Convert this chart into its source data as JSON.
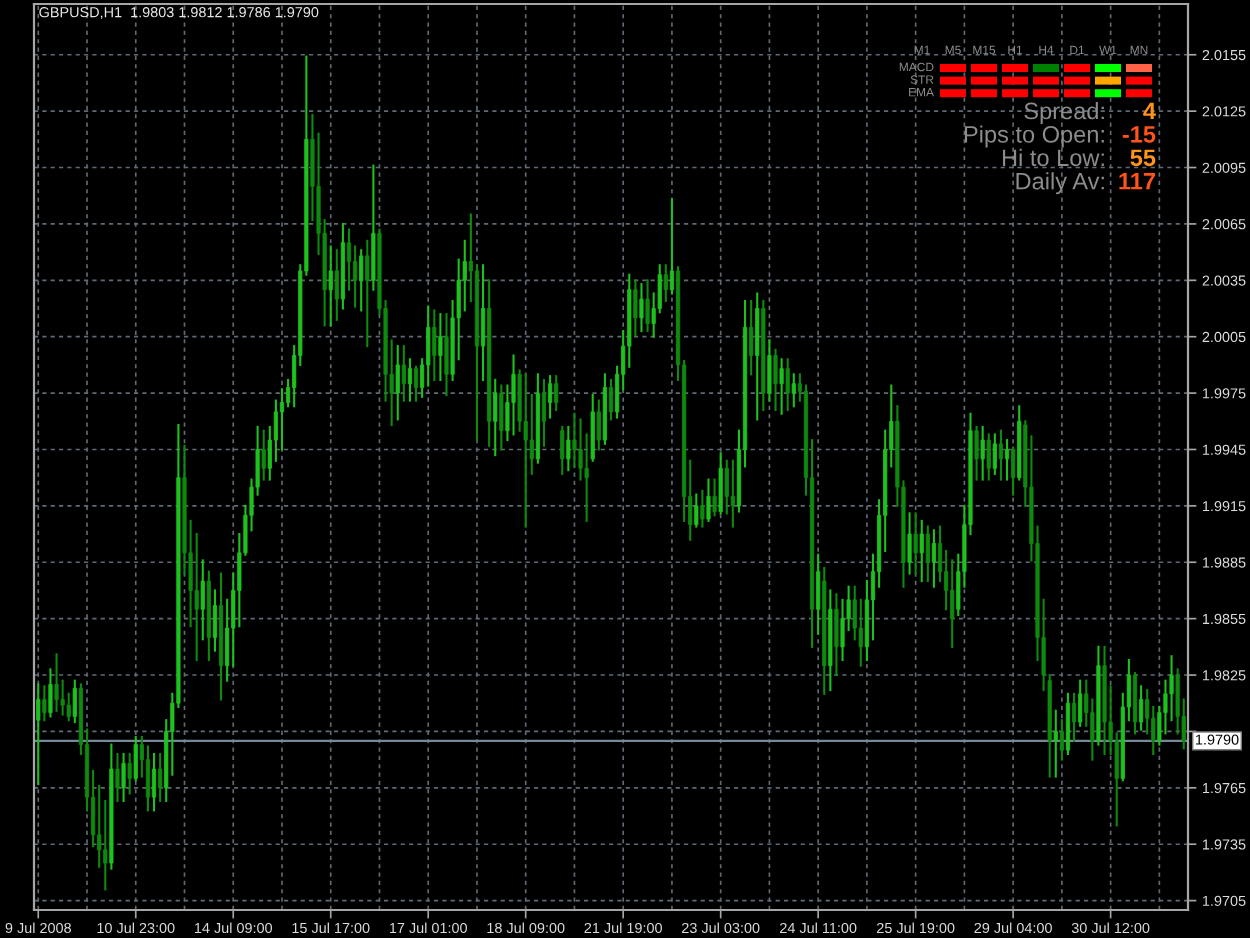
{
  "chart_data": [
    {
      "type": "candlestick",
      "title": "GBPUSD,H1  1.9803 1.9812 1.9786 1.9790",
      "categories": [
        "9 Jul 2008",
        null,
        null,
        null,
        null,
        null,
        null,
        null,
        null,
        null,
        null,
        null,
        null,
        null,
        null,
        null,
        "10 Jul 23:00",
        null,
        null,
        null,
        null,
        null,
        null,
        null,
        null,
        null,
        null,
        null,
        null,
        null,
        null,
        null,
        "14 Jul 09:00",
        null,
        null,
        null,
        null,
        null,
        null,
        null,
        null,
        null,
        null,
        null,
        null,
        null,
        null,
        null,
        "15 Jul 17:00",
        null,
        null,
        null,
        null,
        null,
        null,
        null,
        null,
        null,
        null,
        null,
        null,
        null,
        null,
        null,
        "17 Jul 01:00",
        null,
        null,
        null,
        null,
        null,
        null,
        null,
        null,
        null,
        null,
        null,
        null,
        null,
        null,
        null,
        "18 Jul 09:00",
        null,
        null,
        null,
        null,
        null,
        null,
        null,
        null,
        null,
        null,
        null,
        null,
        null,
        null,
        null,
        "21 Jul 19:00",
        null,
        null,
        null,
        null,
        null,
        null,
        null,
        null,
        null,
        null,
        null,
        null,
        null,
        null,
        null,
        "23 Jul 03:00",
        null,
        null,
        null,
        null,
        null,
        null,
        null,
        null,
        null,
        null,
        null,
        null,
        null,
        null,
        null,
        "24 Jul 11:00",
        null,
        null,
        null,
        null,
        null,
        null,
        null,
        null,
        null,
        null,
        null,
        null,
        null,
        null,
        null,
        "25 Jul 19:00",
        null,
        null,
        null,
        null,
        null,
        null,
        null,
        null,
        null,
        null,
        null,
        null,
        null,
        null,
        null,
        "29 Jul 04:00",
        null,
        null,
        null,
        null,
        null,
        null,
        null,
        null,
        null,
        null,
        null,
        null,
        null,
        null,
        null,
        "30 Jul 12:00",
        null,
        null,
        null,
        null,
        null,
        null,
        null,
        null,
        null,
        null,
        null,
        null
      ],
      "ohlc": [
        [
          1.9801,
          1.982,
          1.9767,
          1.9812
        ],
        [
          1.9812,
          1.9819,
          1.9801,
          1.9805
        ],
        [
          1.9805,
          1.9828,
          1.9803,
          1.982
        ],
        [
          1.982,
          1.9836,
          1.9806,
          1.9812
        ],
        [
          1.9812,
          1.9822,
          1.9804,
          1.9809
        ],
        [
          1.9809,
          1.9815,
          1.9801,
          1.9803
        ],
        [
          1.9803,
          1.9822,
          1.98,
          1.9818
        ],
        [
          1.9818,
          1.982,
          1.9783,
          1.9788
        ],
        [
          1.9788,
          1.9796,
          1.9753,
          1.976
        ],
        [
          1.976,
          1.9774,
          1.9734,
          1.974
        ],
        [
          1.974,
          1.9766,
          1.9723,
          1.9732
        ],
        [
          1.9732,
          1.9758,
          1.9711,
          1.9725
        ],
        [
          1.9725,
          1.9788,
          1.9722,
          1.9775
        ],
        [
          1.9775,
          1.9783,
          1.9758,
          1.9765
        ],
        [
          1.9765,
          1.9783,
          1.9758,
          1.9778
        ],
        [
          1.9778,
          1.9783,
          1.9762,
          1.977
        ],
        [
          1.977,
          1.9792,
          1.9769,
          1.9788
        ],
        [
          1.9788,
          1.9792,
          1.9771,
          1.978
        ],
        [
          1.978,
          1.9787,
          1.9753,
          1.976
        ],
        [
          1.976,
          1.9783,
          1.9753,
          1.9775
        ],
        [
          1.9775,
          1.9783,
          1.9758,
          1.9765
        ],
        [
          1.9765,
          1.9801,
          1.9758,
          1.9795
        ],
        [
          1.9795,
          1.9815,
          1.9772,
          1.981
        ],
        [
          1.981,
          1.9958,
          1.9808,
          1.993
        ],
        [
          1.993,
          1.9947,
          1.9879,
          1.989
        ],
        [
          1.989,
          1.9907,
          1.9851,
          1.987
        ],
        [
          1.987,
          1.99,
          1.9833,
          1.986
        ],
        [
          1.986,
          1.9886,
          1.9844,
          1.9875
        ],
        [
          1.9875,
          1.988,
          1.9833,
          1.9845
        ],
        [
          1.9845,
          1.987,
          1.9838,
          1.9862
        ],
        [
          1.9862,
          1.9879,
          1.9812,
          1.983
        ],
        [
          1.983,
          1.9865,
          1.9822,
          1.985
        ],
        [
          1.985,
          1.9879,
          1.983,
          1.987
        ],
        [
          1.987,
          1.99,
          1.9851,
          1.989
        ],
        [
          1.989,
          1.9915,
          1.9889,
          1.991
        ],
        [
          1.991,
          1.9929,
          1.9902,
          1.9925
        ],
        [
          1.9925,
          1.9957,
          1.9921,
          1.9945
        ],
        [
          1.9945,
          1.9955,
          1.9929,
          1.9935
        ],
        [
          1.9935,
          1.9957,
          1.9929,
          1.995
        ],
        [
          1.995,
          1.9971,
          1.9939,
          1.9965
        ],
        [
          1.9965,
          1.9977,
          1.9945,
          1.997
        ],
        [
          1.997,
          1.9982,
          1.9968,
          1.9978
        ],
        [
          1.9978,
          2.0,
          1.9968,
          1.9995
        ],
        [
          1.9995,
          2.0043,
          1.999,
          2.004
        ],
        [
          2.004,
          2.0154,
          2.0038,
          2.011
        ],
        [
          2.011,
          2.0123,
          2.0067,
          2.0085
        ],
        [
          2.0085,
          2.0113,
          2.0049,
          2.006
        ],
        [
          2.006,
          2.0067,
          2.0011,
          2.003
        ],
        [
          2.003,
          2.0053,
          2.0011,
          2.004
        ],
        [
          2.004,
          2.0051,
          2.0014,
          2.0025
        ],
        [
          2.0025,
          2.0065,
          2.002,
          2.0055
        ],
        [
          2.0055,
          2.0062,
          2.003,
          2.0045
        ],
        [
          2.0045,
          2.0053,
          2.0021,
          2.0035
        ],
        [
          2.0035,
          2.0051,
          2.0019,
          2.0048
        ],
        [
          2.0048,
          2.0056,
          2.0,
          2.0035
        ],
        [
          2.0035,
          2.0096,
          2.003,
          2.006
        ],
        [
          2.006,
          2.0062,
          2.0017,
          2.002
        ],
        [
          2.002,
          2.0024,
          1.9971,
          1.9985
        ],
        [
          1.9985,
          2.0003,
          1.9958,
          1.9975
        ],
        [
          1.9975,
          2.0,
          1.9961,
          1.999
        ],
        [
          1.999,
          2.0,
          1.9971,
          1.998
        ],
        [
          1.998,
          1.9993,
          1.9971,
          1.9988
        ],
        [
          1.9988,
          1.9989,
          1.9971,
          1.9978
        ],
        [
          1.9978,
          1.9993,
          1.9973,
          1.999
        ],
        [
          1.999,
          2.0021,
          1.9979,
          2.001
        ],
        [
          2.001,
          2.0019,
          1.9982,
          1.9995
        ],
        [
          1.9995,
          2.0017,
          1.9982,
          2.0005
        ],
        [
          2.0005,
          2.0017,
          1.9974,
          1.9985
        ],
        [
          1.9985,
          2.0024,
          1.9982,
          2.0015
        ],
        [
          2.0015,
          2.0046,
          1.9993,
          2.0035
        ],
        [
          2.0035,
          2.0056,
          2.0019,
          2.0045
        ],
        [
          2.0045,
          2.007,
          2.0024,
          2.004
        ],
        [
          2.004,
          2.0043,
          1.995,
          2.0
        ],
        [
          2.0,
          2.0043,
          1.9982,
          2.002
        ],
        [
          2.002,
          2.0035,
          1.9947,
          1.996
        ],
        [
          1.996,
          1.9982,
          1.9942,
          1.9975
        ],
        [
          1.9975,
          1.9979,
          1.9945,
          1.9955
        ],
        [
          1.9955,
          1.9979,
          1.995,
          1.997
        ],
        [
          1.997,
          1.9995,
          1.9953,
          1.9985
        ],
        [
          1.9985,
          1.9987,
          1.9955,
          1.996
        ],
        [
          1.996,
          1.9985,
          1.9904,
          1.995
        ],
        [
          1.995,
          1.9974,
          1.9932,
          1.994
        ],
        [
          1.994,
          1.9985,
          1.9938,
          1.9975
        ],
        [
          1.9975,
          1.9982,
          1.9947,
          1.996
        ],
        [
          1.997,
          1.9984,
          1.9962,
          1.998
        ],
        [
          1.998,
          1.9984,
          1.9966,
          1.997
        ],
        [
          1.9955,
          1.9957,
          1.9932,
          1.994
        ],
        [
          1.994,
          1.9957,
          1.9934,
          1.995
        ],
        [
          1.995,
          1.9964,
          1.9936,
          1.9945
        ],
        [
          1.9945,
          1.9961,
          1.9929,
          1.9935
        ],
        [
          1.9935,
          1.9953,
          1.9907,
          1.993
        ],
        [
          1.994,
          1.9974,
          1.9939,
          1.9965
        ],
        [
          1.9965,
          1.9971,
          1.9945,
          1.995
        ],
        [
          1.995,
          1.9985,
          1.9948,
          1.9978
        ],
        [
          1.9978,
          1.9982,
          1.9961,
          1.9965
        ],
        [
          1.9965,
          1.9989,
          1.9962,
          1.9985
        ],
        [
          1.9985,
          2.0008,
          1.9977,
          2.0
        ],
        [
          2.0,
          2.0038,
          1.9989,
          2.003
        ],
        [
          2.003,
          2.0035,
          2.0006,
          2.0015
        ],
        [
          2.0015,
          2.0033,
          2.0008,
          2.0025
        ],
        [
          2.0025,
          2.0035,
          2.0008,
          2.0012
        ],
        [
          2.0012,
          2.0028,
          2.0005,
          2.002
        ],
        [
          2.002,
          2.0043,
          2.0018,
          2.0038
        ],
        [
          2.0038,
          2.0043,
          2.0024,
          2.003
        ],
        [
          2.003,
          2.0078,
          2.0028,
          2.004
        ],
        [
          2.004,
          2.0042,
          1.9982,
          1.999
        ],
        [
          1.999,
          1.9992,
          1.9907,
          1.992
        ],
        [
          1.992,
          1.9939,
          1.9897,
          1.9905
        ],
        [
          1.9905,
          1.9921,
          1.9904,
          1.9915
        ],
        [
          1.9915,
          1.9923,
          1.9904,
          1.9908
        ],
        [
          1.9908,
          1.9929,
          1.9907,
          1.992
        ],
        [
          1.992,
          1.9929,
          1.991,
          1.9912
        ],
        [
          1.9912,
          1.9943,
          1.9911,
          1.9935
        ],
        [
          1.9935,
          1.9939,
          1.9911,
          1.992
        ],
        [
          1.992,
          1.9939,
          1.9904,
          1.9915
        ],
        [
          1.9915,
          1.9955,
          1.9912,
          1.9945
        ],
        [
          1.9945,
          2.0024,
          1.9936,
          2.001
        ],
        [
          2.001,
          2.0024,
          1.9985,
          1.9995
        ],
        [
          1.9995,
          2.0028,
          1.9961,
          2.002
        ],
        [
          2.002,
          2.0024,
          1.9966,
          1.9975
        ],
        [
          1.9975,
          2.0003,
          1.9971,
          1.9995
        ],
        [
          1.9995,
          1.9998,
          1.9966,
          1.998
        ],
        [
          1.998,
          1.9993,
          1.9964,
          1.9988
        ],
        [
          1.9988,
          1.9993,
          1.9966,
          1.9975
        ],
        [
          1.9975,
          1.9985,
          1.9968,
          1.998
        ],
        [
          1.998,
          1.9985,
          1.9971,
          1.9976
        ],
        [
          1.9976,
          1.9979,
          1.9921,
          1.993
        ],
        [
          1.993,
          1.995,
          1.984,
          1.986
        ],
        [
          1.986,
          1.9889,
          1.9847,
          1.988
        ],
        [
          1.9875,
          1.9882,
          1.9815,
          1.983
        ],
        [
          1.983,
          1.987,
          1.9817,
          1.986
        ],
        [
          1.986,
          1.9868,
          1.9825,
          1.984
        ],
        [
          1.984,
          1.9865,
          1.9833,
          1.9855
        ],
        [
          1.9855,
          1.9872,
          1.9849,
          1.9865
        ],
        [
          1.9865,
          1.9872,
          1.9844,
          1.985
        ],
        [
          1.985,
          1.9865,
          1.983,
          1.984
        ],
        [
          1.984,
          1.9875,
          1.9833,
          1.9865
        ],
        [
          1.9865,
          1.9889,
          1.9844,
          1.988
        ],
        [
          1.988,
          1.9918,
          1.9872,
          1.991
        ],
        [
          1.991,
          1.9955,
          1.9891,
          1.9945
        ],
        [
          1.9945,
          1.9979,
          1.9936,
          1.996
        ],
        [
          1.996,
          1.9968,
          1.9915,
          1.9925
        ],
        [
          1.9925,
          1.9928,
          1.9872,
          1.9885
        ],
        [
          1.9885,
          1.9911,
          1.9879,
          1.99
        ],
        [
          1.99,
          1.9911,
          1.9879,
          1.989
        ],
        [
          1.989,
          1.9907,
          1.9875,
          1.99
        ],
        [
          1.99,
          1.9904,
          1.9875,
          1.9885
        ],
        [
          1.9885,
          1.9902,
          1.9872,
          1.9895
        ],
        [
          1.9895,
          1.9904,
          1.9875,
          1.988
        ],
        [
          1.988,
          1.9891,
          1.986,
          1.987
        ],
        [
          1.987,
          1.9886,
          1.984,
          1.9855
        ],
        [
          1.986,
          1.9889,
          1.9857,
          1.988
        ],
        [
          1.988,
          1.9915,
          1.9872,
          1.9905
        ],
        [
          1.9905,
          1.9964,
          1.99,
          1.9955
        ],
        [
          1.9955,
          1.9957,
          1.9929,
          1.994
        ],
        [
          1.994,
          1.9957,
          1.9929,
          1.995
        ],
        [
          1.995,
          1.9953,
          1.9929,
          1.9935
        ],
        [
          1.9935,
          1.9953,
          1.9932,
          1.9948
        ],
        [
          1.9948,
          1.9955,
          1.9929,
          1.994
        ],
        [
          1.994,
          1.995,
          1.9929,
          1.9945
        ],
        [
          1.9945,
          1.9946,
          1.9921,
          1.993
        ],
        [
          1.993,
          1.9968,
          1.9929,
          1.996
        ],
        [
          1.9958,
          1.996,
          1.9915,
          1.9925
        ],
        [
          1.9925,
          1.9952,
          1.9886,
          1.9895
        ],
        [
          1.9895,
          1.9904,
          1.9833,
          1.9845
        ],
        [
          1.9845,
          1.9865,
          1.9817,
          1.9825
        ],
        [
          1.9822,
          1.9825,
          1.9771,
          1.979
        ],
        [
          1.979,
          1.9806,
          1.9771,
          1.9795
        ],
        [
          1.9795,
          1.9801,
          1.978,
          1.9785
        ],
        [
          1.9785,
          1.9815,
          1.9783,
          1.981
        ],
        [
          1.981,
          1.9815,
          1.979,
          1.98
        ],
        [
          1.98,
          1.9822,
          1.9798,
          1.9815
        ],
        [
          1.9815,
          1.9822,
          1.9798,
          1.9805
        ],
        [
          1.9805,
          1.9812,
          1.978,
          1.979
        ],
        [
          1.979,
          1.984,
          1.9788,
          1.983
        ],
        [
          1.983,
          1.984,
          1.9783,
          1.98
        ],
        [
          1.98,
          1.9819,
          1.9783,
          1.979
        ],
        [
          1.979,
          1.9794,
          1.9745,
          1.977
        ],
        [
          1.977,
          1.9815,
          1.9769,
          1.9808
        ],
        [
          1.9808,
          1.9833,
          1.9801,
          1.9825
        ],
        [
          1.9825,
          1.9826,
          1.9794,
          1.98
        ],
        [
          1.98,
          1.9819,
          1.9796,
          1.9812
        ],
        [
          1.9812,
          1.9817,
          1.9794,
          1.9802
        ],
        [
          1.9802,
          1.9808,
          1.9783,
          1.979
        ],
        [
          1.979,
          1.9808,
          1.9788,
          1.9805
        ],
        [
          1.9805,
          1.9822,
          1.9794,
          1.9815
        ],
        [
          1.9815,
          1.9835,
          1.9801,
          1.9825
        ],
        [
          1.9825,
          1.9828,
          1.9794,
          1.9803
        ],
        [
          1.9803,
          1.9812,
          1.9786,
          1.979
        ]
      ],
      "colors": [
        "#1ec21e",
        "#0e8a0e",
        "#1ec21e",
        "#0e8a0e",
        "#0e8a0e",
        "#0e8a0e",
        "#1ec21e",
        "#0e8a0e",
        "#0e8a0e",
        "#0e8a0e",
        "#0e8a0e",
        "#0e8a0e",
        "#1ec21e",
        "#0e8a0e",
        "#1ec21e",
        "#0e8a0e",
        "#1ec21e",
        "#0e8a0e",
        "#0e8a0e",
        "#1ec21e",
        "#0e8a0e",
        "#1ec21e",
        "#1ec21e",
        "#1ec21e",
        "#0e8a0e",
        "#0e8a0e",
        "#0e8a0e",
        "#1ec21e",
        "#0e8a0e",
        "#1ec21e",
        "#0e8a0e",
        "#1ec21e",
        "#1ec21e",
        "#1ec21e",
        "#1ec21e",
        "#1ec21e",
        "#1ec21e",
        "#0e8a0e",
        "#1ec21e",
        "#1ec21e",
        "#1ec21e",
        "#1ec21e",
        "#1ec21e",
        "#1ec21e",
        "#1ec21e",
        "#0e8a0e",
        "#0e8a0e",
        "#0e8a0e",
        "#1ec21e",
        "#0e8a0e",
        "#1ec21e",
        "#0e8a0e",
        "#0e8a0e",
        "#1ec21e",
        "#0e8a0e",
        "#1ec21e",
        "#0e8a0e",
        "#0e8a0e",
        "#0e8a0e",
        "#1ec21e",
        "#0e8a0e",
        "#1ec21e",
        "#0e8a0e",
        "#1ec21e",
        "#1ec21e",
        "#0e8a0e",
        "#1ec21e",
        "#0e8a0e",
        "#1ec21e",
        "#1ec21e",
        "#1ec21e",
        "#0e8a0e",
        "#0e8a0e",
        "#1ec21e",
        "#0e8a0e",
        "#1ec21e",
        "#0e8a0e",
        "#1ec21e",
        "#1ec21e",
        "#0e8a0e",
        "#0e8a0e",
        "#0e8a0e",
        "#1ec21e",
        "#0e8a0e",
        "#1ec21e",
        "#0e8a0e",
        "#0e8a0e",
        "#1ec21e",
        "#0e8a0e",
        "#0e8a0e",
        "#0e8a0e",
        "#1ec21e",
        "#0e8a0e",
        "#1ec21e",
        "#0e8a0e",
        "#1ec21e",
        "#1ec21e",
        "#1ec21e",
        "#0e8a0e",
        "#1ec21e",
        "#0e8a0e",
        "#1ec21e",
        "#1ec21e",
        "#0e8a0e",
        "#1ec21e",
        "#0e8a0e",
        "#0e8a0e",
        "#0e8a0e",
        "#1ec21e",
        "#0e8a0e",
        "#1ec21e",
        "#0e8a0e",
        "#1ec21e",
        "#0e8a0e",
        "#0e8a0e",
        "#1ec21e",
        "#1ec21e",
        "#0e8a0e",
        "#1ec21e",
        "#0e8a0e",
        "#1ec21e",
        "#0e8a0e",
        "#1ec21e",
        "#0e8a0e",
        "#1ec21e",
        "#0e8a0e",
        "#0e8a0e",
        "#0e8a0e",
        "#1ec21e",
        "#0e8a0e",
        "#1ec21e",
        "#0e8a0e",
        "#1ec21e",
        "#1ec21e",
        "#0e8a0e",
        "#0e8a0e",
        "#1ec21e",
        "#1ec21e",
        "#1ec21e",
        "#1ec21e",
        "#1ec21e",
        "#0e8a0e",
        "#0e8a0e",
        "#1ec21e",
        "#0e8a0e",
        "#1ec21e",
        "#0e8a0e",
        "#1ec21e",
        "#0e8a0e",
        "#0e8a0e",
        "#0e8a0e",
        "#1ec21e",
        "#1ec21e",
        "#1ec21e",
        "#0e8a0e",
        "#1ec21e",
        "#0e8a0e",
        "#1ec21e",
        "#0e8a0e",
        "#1ec21e",
        "#0e8a0e",
        "#1ec21e",
        "#0e8a0e",
        "#0e8a0e",
        "#0e8a0e",
        "#0e8a0e",
        "#0e8a0e",
        "#1ec21e",
        "#0e8a0e",
        "#1ec21e",
        "#0e8a0e",
        "#1ec21e",
        "#0e8a0e",
        "#0e8a0e",
        "#1ec21e",
        "#0e8a0e",
        "#0e8a0e",
        "#0e8a0e",
        "#1ec21e",
        "#1ec21e",
        "#0e8a0e",
        "#1ec21e",
        "#0e8a0e",
        "#0e8a0e",
        "#1ec21e",
        "#1ec21e",
        "#1ec21e",
        "#0e8a0e",
        "#0e8a0e"
      ],
      "ylim": [
        1.97,
        2.0182
      ],
      "yticks": [
        1.9705,
        1.9735,
        1.9765,
        {
          "value": 1.9795,
          "label": null
        },
        1.9825,
        1.9855,
        1.9885,
        1.9915,
        1.9945,
        1.9975,
        2.0005,
        2.0035,
        2.0065,
        2.0095,
        2.0125,
        2.0155
      ],
      "grid": true,
      "ref_lines": [
        {
          "axis": "y",
          "value": 1.979,
          "label": "1.9790",
          "color": "#778899"
        }
      ]
    },
    {
      "type": "other",
      "categories": [
        "M1",
        "M5",
        "M15",
        "H1",
        "H4",
        "D1",
        "W1",
        "MN"
      ],
      "y_categories": [
        "MACD",
        "STR",
        "EMA"
      ],
      "colors": [
        [
          null,
          "#ff0000",
          "#ff0000",
          "#ff0000",
          "#008000",
          "#ff0000",
          "#00ff00",
          "#ff6347"
        ],
        [
          null,
          "#ff0000",
          "#ff0000",
          "#ff0000",
          "#ff0000",
          "#ff0000",
          "#ffa500",
          "#ff0000"
        ],
        [
          null,
          "#ff0000",
          "#ff0000",
          "#ff0000",
          "#ff0000",
          "#ff0000",
          "#00ff00",
          "#ff0000"
        ]
      ]
    },
    {
      "type": "other",
      "annotations": [
        "Spread:",
        "4",
        "Pips to Open:",
        "-15",
        "Hi to Low:",
        "55",
        "Daily Av:",
        "117"
      ],
      "colors": [
        "#8c8c8c",
        "#ff9419",
        "#8c8c8c",
        "#ff5319",
        "#8c8c8c",
        "#ff9419",
        "#8c8c8c",
        "#ff5319"
      ]
    }
  ]
}
